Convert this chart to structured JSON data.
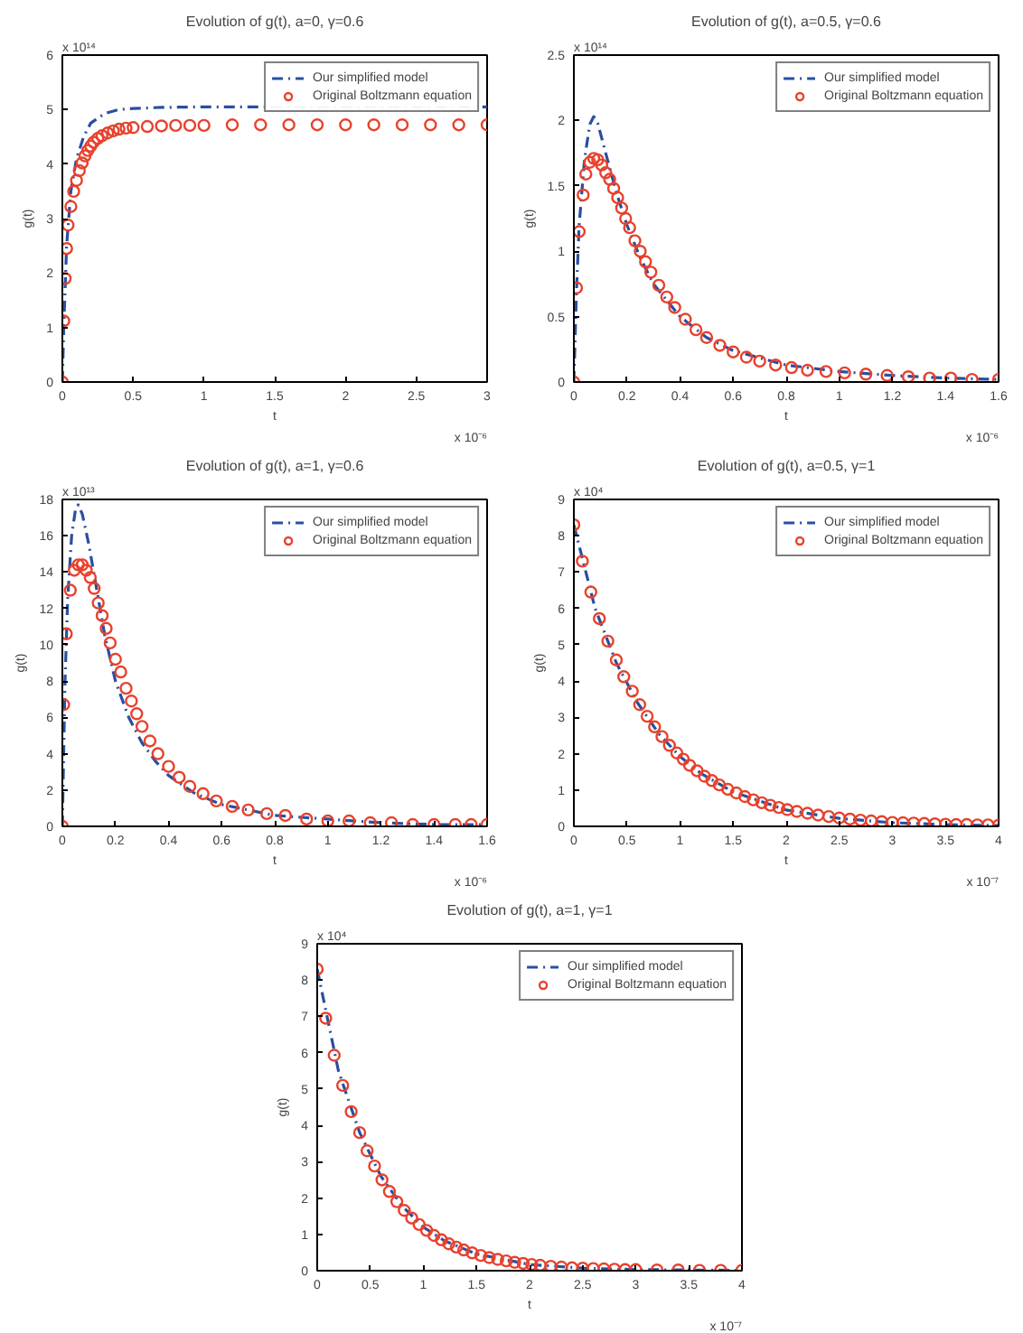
{
  "chart_data": [
    {
      "type": "line",
      "title": "Evolution of g(t), a=0, γ=0.6",
      "xlabel": "t",
      "ylabel": "g(t)",
      "xlim": [
        0,
        3
      ],
      "ylim": [
        0,
        6
      ],
      "xticks": [
        0,
        0.5,
        1,
        1.5,
        2,
        2.5,
        3
      ],
      "yticks": [
        0,
        1,
        2,
        3,
        4,
        5,
        6
      ],
      "annotations": [
        "x 10¹⁴",
        "x 10⁻⁶"
      ],
      "grid": false,
      "legend": "top right",
      "series": [
        {
          "name": "Our simplified model",
          "type": "line",
          "color": "#2a4fa0",
          "line_style": "dashed",
          "marker": "none",
          "x": [
            0,
            0.01,
            0.03,
            0.06,
            0.1,
            0.15,
            0.2,
            0.3,
            0.4,
            0.5,
            0.7,
            1,
            3
          ],
          "values": [
            0,
            1,
            2.5,
            3.5,
            4.1,
            4.5,
            4.75,
            4.93,
            5.0,
            5.02,
            5.04,
            5.05,
            5.05
          ]
        },
        {
          "name": "Original Boltzmann equation",
          "type": "scatter",
          "color": "#e8412c",
          "marker": "circle",
          "x": [
            0,
            0.01,
            0.02,
            0.03,
            0.04,
            0.06,
            0.08,
            0.1,
            0.12,
            0.14,
            0.16,
            0.18,
            0.2,
            0.22,
            0.25,
            0.28,
            0.32,
            0.36,
            0.4,
            0.45,
            0.5,
            0.6,
            0.7,
            0.8,
            0.9,
            1.0,
            1.2,
            1.4,
            1.6,
            1.8,
            2.0,
            2.2,
            2.4,
            2.6,
            2.8,
            3.0
          ],
          "values": [
            0,
            1.12,
            1.9,
            2.45,
            2.88,
            3.22,
            3.5,
            3.7,
            3.88,
            4.02,
            4.15,
            4.25,
            4.33,
            4.4,
            4.47,
            4.52,
            4.57,
            4.61,
            4.64,
            4.66,
            4.67,
            4.69,
            4.7,
            4.71,
            4.71,
            4.71,
            4.72,
            4.72,
            4.72,
            4.72,
            4.72,
            4.72,
            4.72,
            4.72,
            4.72,
            4.72
          ]
        }
      ]
    },
    {
      "type": "line",
      "title": "Evolution of g(t), a=0.5, γ=0.6",
      "xlabel": "t",
      "ylabel": "g(t)",
      "xlim": [
        0,
        1.6
      ],
      "ylim": [
        0,
        2.5
      ],
      "xticks": [
        0,
        0.2,
        0.4,
        0.6,
        0.8,
        1,
        1.2,
        1.4,
        1.6
      ],
      "yticks": [
        0,
        0.5,
        1,
        1.5,
        2,
        2.5
      ],
      "annotations": [
        "x 10¹⁴",
        "x 10⁻⁶"
      ],
      "grid": false,
      "legend": "top right",
      "series": [
        {
          "name": "Our simplified model",
          "type": "line",
          "color": "#2a4fa0",
          "line_style": "dashed",
          "marker": "none",
          "x": [
            0,
            0.01,
            0.02,
            0.04,
            0.06,
            0.075,
            0.09,
            0.12,
            0.16,
            0.2,
            0.25,
            0.3,
            0.4,
            0.5,
            0.6,
            0.8,
            1.0,
            1.2,
            1.4,
            1.6
          ],
          "values": [
            0,
            0.7,
            1.2,
            1.7,
            1.97,
            2.03,
            1.98,
            1.75,
            1.45,
            1.2,
            0.95,
            0.75,
            0.5,
            0.34,
            0.24,
            0.13,
            0.08,
            0.05,
            0.03,
            0.02
          ]
        },
        {
          "name": "Original Boltzmann equation",
          "type": "scatter",
          "color": "#e8412c",
          "marker": "circle",
          "x": [
            0,
            0.01,
            0.02,
            0.035,
            0.045,
            0.06,
            0.075,
            0.09,
            0.105,
            0.12,
            0.135,
            0.15,
            0.165,
            0.18,
            0.195,
            0.21,
            0.23,
            0.25,
            0.27,
            0.29,
            0.32,
            0.35,
            0.38,
            0.42,
            0.46,
            0.5,
            0.55,
            0.6,
            0.65,
            0.7,
            0.76,
            0.82,
            0.88,
            0.95,
            1.02,
            1.1,
            1.18,
            1.26,
            1.34,
            1.42,
            1.5,
            1.6
          ],
          "values": [
            0,
            0.72,
            1.15,
            1.43,
            1.59,
            1.68,
            1.71,
            1.7,
            1.66,
            1.6,
            1.55,
            1.48,
            1.41,
            1.33,
            1.25,
            1.18,
            1.08,
            1.0,
            0.92,
            0.84,
            0.74,
            0.65,
            0.57,
            0.48,
            0.4,
            0.34,
            0.28,
            0.23,
            0.19,
            0.16,
            0.13,
            0.11,
            0.09,
            0.08,
            0.07,
            0.06,
            0.05,
            0.04,
            0.03,
            0.03,
            0.02,
            0.02
          ]
        }
      ]
    },
    {
      "type": "line",
      "title": "Evolution of g(t), a=1, γ=0.6",
      "xlabel": "t",
      "ylabel": "g(t)",
      "xlim": [
        0,
        1.6
      ],
      "ylim": [
        0,
        18
      ],
      "xticks": [
        0,
        0.2,
        0.4,
        0.6,
        0.8,
        1,
        1.2,
        1.4,
        1.6
      ],
      "yticks": [
        0,
        2,
        4,
        6,
        8,
        10,
        12,
        14,
        16,
        18
      ],
      "annotations": [
        "x 10¹³",
        "x 10⁻⁶"
      ],
      "grid": false,
      "legend": "top right",
      "series": [
        {
          "name": "Our simplified model",
          "type": "line",
          "color": "#2a4fa0",
          "line_style": "dashed",
          "marker": "none",
          "x": [
            0,
            0.01,
            0.02,
            0.035,
            0.05,
            0.06,
            0.075,
            0.1,
            0.13,
            0.16,
            0.2,
            0.25,
            0.3,
            0.35,
            0.4,
            0.5,
            0.6,
            0.8,
            1.0,
            1.2,
            1.4,
            1.6
          ],
          "values": [
            0,
            8,
            12.5,
            16,
            17.5,
            17.7,
            17.2,
            15.5,
            13,
            10.5,
            8,
            6,
            4.6,
            3.6,
            2.8,
            1.8,
            1.2,
            0.6,
            0.4,
            0.2,
            0.1,
            0.1
          ]
        },
        {
          "name": "Original Boltzmann equation",
          "type": "scatter",
          "color": "#e8412c",
          "marker": "circle",
          "x": [
            0,
            0.005,
            0.015,
            0.03,
            0.045,
            0.06,
            0.075,
            0.09,
            0.105,
            0.12,
            0.135,
            0.15,
            0.165,
            0.18,
            0.2,
            0.22,
            0.24,
            0.26,
            0.28,
            0.3,
            0.33,
            0.36,
            0.4,
            0.44,
            0.48,
            0.53,
            0.58,
            0.64,
            0.7,
            0.77,
            0.84,
            0.92,
            1.0,
            1.08,
            1.16,
            1.24,
            1.32,
            1.4,
            1.48,
            1.54,
            1.6
          ],
          "values": [
            0,
            6.7,
            10.6,
            13,
            14.1,
            14.4,
            14.4,
            14.1,
            13.7,
            13.1,
            12.3,
            11.6,
            10.9,
            10.1,
            9.2,
            8.5,
            7.6,
            6.9,
            6.2,
            5.5,
            4.7,
            4.0,
            3.3,
            2.7,
            2.2,
            1.8,
            1.4,
            1.1,
            0.9,
            0.7,
            0.6,
            0.4,
            0.3,
            0.3,
            0.2,
            0.2,
            0.1,
            0.1,
            0.1,
            0.1,
            0.1
          ]
        }
      ]
    },
    {
      "type": "line",
      "title": "Evolution of g(t), a=0.5, γ=1",
      "xlabel": "t",
      "ylabel": "g(t)",
      "xlim": [
        0,
        4
      ],
      "ylim": [
        0,
        9
      ],
      "xticks": [
        0,
        0.5,
        1,
        1.5,
        2,
        2.5,
        3,
        3.5,
        4
      ],
      "yticks": [
        0,
        1,
        2,
        3,
        4,
        5,
        6,
        7,
        8,
        9
      ],
      "annotations": [
        "x 10⁴",
        "x 10⁻⁷"
      ],
      "grid": false,
      "legend": "top right",
      "series": [
        {
          "name": "Our simplified model",
          "type": "line",
          "color": "#2a4fa0",
          "line_style": "dashed",
          "marker": "none",
          "x": [
            0,
            0.2,
            0.4,
            0.6,
            0.8,
            1.0,
            1.2,
            1.5,
            2.0,
            2.5,
            3.0,
            3.5,
            4.0
          ],
          "values": [
            8.3,
            6.0,
            4.5,
            3.4,
            2.55,
            1.92,
            1.45,
            0.95,
            0.45,
            0.22,
            0.1,
            0.05,
            0.02
          ]
        },
        {
          "name": "Original Boltzmann equation",
          "type": "scatter",
          "color": "#e8412c",
          "marker": "circle",
          "x": [
            0,
            0.08,
            0.16,
            0.24,
            0.32,
            0.4,
            0.47,
            0.55,
            0.62,
            0.69,
            0.76,
            0.83,
            0.9,
            0.97,
            1.03,
            1.09,
            1.16,
            1.23,
            1.3,
            1.37,
            1.45,
            1.53,
            1.61,
            1.69,
            1.77,
            1.85,
            1.93,
            2.01,
            2.1,
            2.2,
            2.3,
            2.4,
            2.5,
            2.6,
            2.7,
            2.8,
            2.9,
            3.0,
            3.1,
            3.2,
            3.3,
            3.4,
            3.5,
            3.6,
            3.7,
            3.8,
            3.9,
            4.0
          ],
          "values": [
            8.3,
            7.3,
            6.45,
            5.72,
            5.1,
            4.58,
            4.12,
            3.72,
            3.35,
            3.03,
            2.74,
            2.47,
            2.23,
            2.02,
            1.85,
            1.68,
            1.53,
            1.38,
            1.26,
            1.14,
            1.02,
            0.92,
            0.82,
            0.73,
            0.65,
            0.58,
            0.52,
            0.46,
            0.41,
            0.36,
            0.31,
            0.27,
            0.23,
            0.2,
            0.17,
            0.15,
            0.13,
            0.11,
            0.1,
            0.09,
            0.08,
            0.07,
            0.06,
            0.05,
            0.05,
            0.04,
            0.04,
            0.03
          ]
        }
      ]
    },
    {
      "type": "line",
      "title": "Evolution of g(t), a=1, γ=1",
      "xlabel": "t",
      "ylabel": "g(t)",
      "xlim": [
        0,
        4
      ],
      "ylim": [
        0,
        9
      ],
      "xticks": [
        0,
        0.5,
        1,
        1.5,
        2,
        2.5,
        3,
        3.5,
        4
      ],
      "yticks": [
        0,
        1,
        2,
        3,
        4,
        5,
        6,
        7,
        8,
        9
      ],
      "annotations": [
        "x 10⁴",
        "x 10⁻⁷"
      ],
      "grid": false,
      "legend": "top right",
      "series": [
        {
          "name": "Our simplified model",
          "type": "line",
          "color": "#2a4fa0",
          "line_style": "dashed",
          "marker": "none",
          "x": [
            0,
            0.2,
            0.4,
            0.6,
            0.8,
            1.0,
            1.2,
            1.5,
            2.0,
            2.5,
            3.0,
            4.0
          ],
          "values": [
            8.3,
            5.5,
            3.8,
            2.6,
            1.78,
            1.2,
            0.82,
            0.46,
            0.17,
            0.07,
            0.03,
            0.01
          ]
        },
        {
          "name": "Original Boltzmann equation",
          "type": "scatter",
          "color": "#e8412c",
          "marker": "circle",
          "x": [
            0,
            0.08,
            0.16,
            0.24,
            0.32,
            0.4,
            0.47,
            0.54,
            0.61,
            0.68,
            0.75,
            0.82,
            0.89,
            0.96,
            1.03,
            1.1,
            1.17,
            1.24,
            1.31,
            1.38,
            1.46,
            1.54,
            1.62,
            1.7,
            1.78,
            1.86,
            1.94,
            2.02,
            2.1,
            2.2,
            2.3,
            2.4,
            2.5,
            2.6,
            2.7,
            2.8,
            2.9,
            3.0,
            3.2,
            3.4,
            3.6,
            3.8,
            4.0
          ],
          "values": [
            8.3,
            6.95,
            5.93,
            5.1,
            4.38,
            3.8,
            3.3,
            2.88,
            2.5,
            2.18,
            1.9,
            1.66,
            1.45,
            1.27,
            1.11,
            0.97,
            0.85,
            0.74,
            0.65,
            0.57,
            0.49,
            0.42,
            0.36,
            0.31,
            0.27,
            0.23,
            0.2,
            0.17,
            0.15,
            0.12,
            0.1,
            0.08,
            0.07,
            0.06,
            0.05,
            0.04,
            0.03,
            0.03,
            0.02,
            0.02,
            0.01,
            0.01,
            0.01
          ]
        }
      ]
    }
  ]
}
